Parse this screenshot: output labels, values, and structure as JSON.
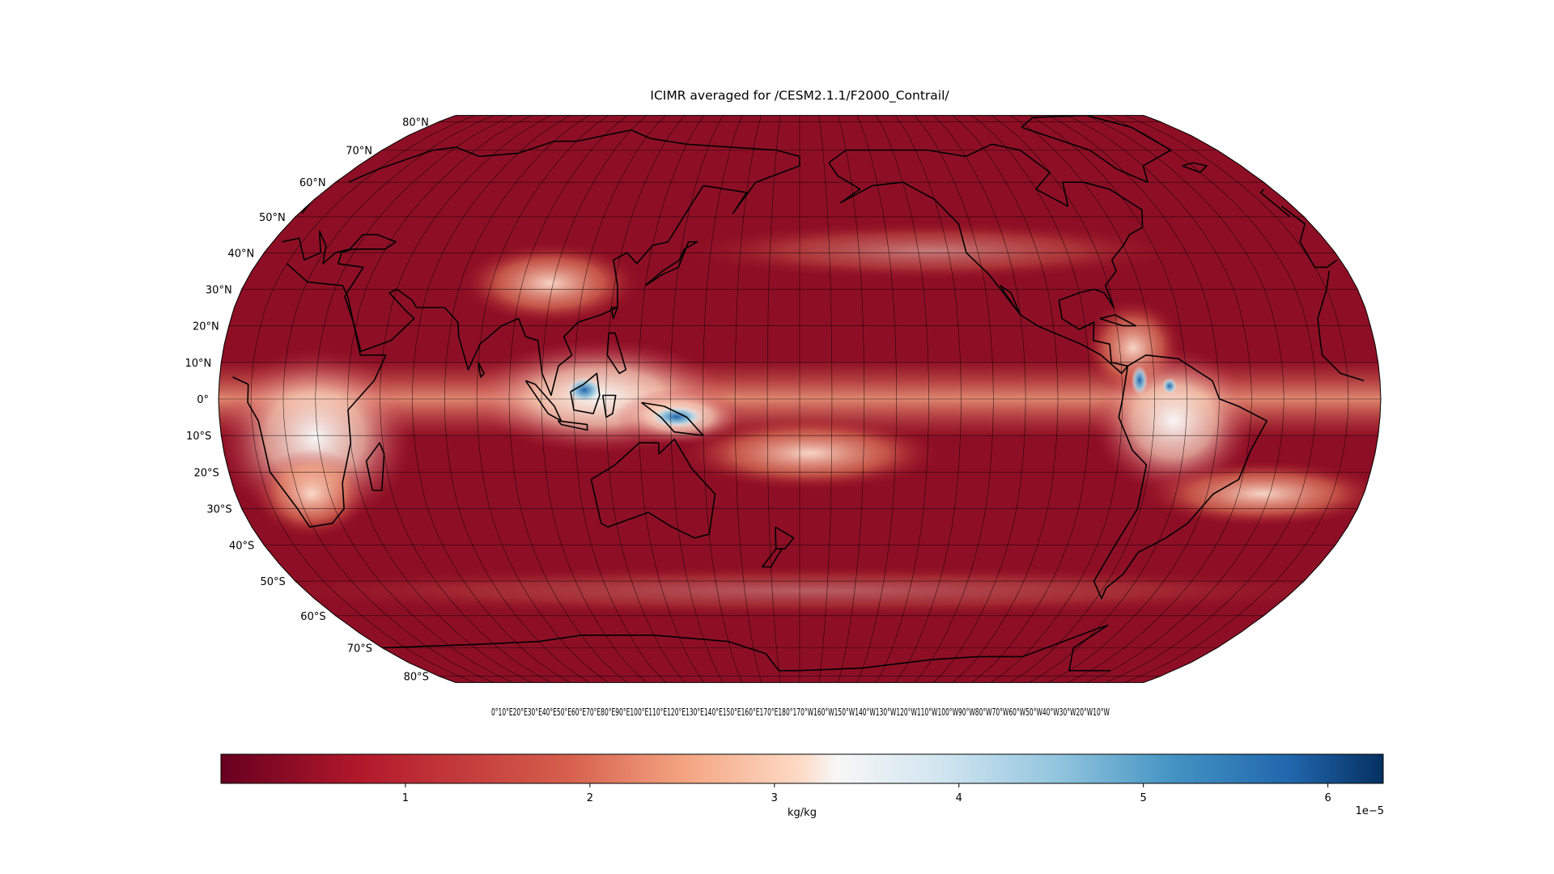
{
  "title": "ICIMR averaged for /CESM2.1.1/F2000_Contrail/",
  "projection": "robinson",
  "central_longitude": 180,
  "lat_labels": [
    "80°N",
    "70°N",
    "60°N",
    "50°N",
    "40°N",
    "30°N",
    "20°N",
    "10°N",
    "0°",
    "10°S",
    "20°S",
    "30°S",
    "40°S",
    "50°S",
    "60°S",
    "70°S",
    "80°S"
  ],
  "lat_values": [
    80,
    70,
    60,
    50,
    40,
    30,
    20,
    10,
    0,
    -10,
    -20,
    -30,
    -40,
    -50,
    -60,
    -70,
    -80
  ],
  "lon_labels_text": "0°10°E20°E30°E40°E50°E60°E70°E80°E90°E100°E110°E120°E130°E140°E150°E160°E170°E180°170°W160°W150°W140°W130°W120°W110°W100°W90°W80°W70°W60°W50°W40°W30°W20°W10°W",
  "colormap": "RdBu",
  "colors": {
    "low": "#67001f",
    "mid_low": "#b2182b",
    "mid": "#f7f7f7",
    "mid_high": "#4393c3",
    "high": "#053061",
    "coast": "#000000"
  },
  "colorbar": {
    "label": "kg/kg",
    "ticks": [
      {
        "value": 1,
        "label": "1"
      },
      {
        "value": 2,
        "label": "2"
      },
      {
        "value": 3,
        "label": "3"
      },
      {
        "value": 4,
        "label": "4"
      },
      {
        "value": 5,
        "label": "5"
      },
      {
        "value": 6,
        "label": "6"
      }
    ],
    "vmin": 0,
    "vmax": 6.3,
    "offset_label": "1e−5"
  }
}
